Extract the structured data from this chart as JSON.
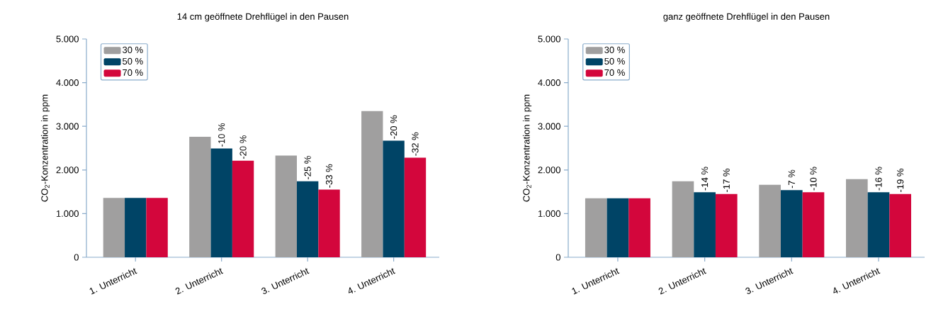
{
  "chart_data": [
    {
      "type": "bar",
      "title": "14 cm geöffnete Drehflügel in den Pausen",
      "ylabel": "CO$_{2}$-Konzentration in ppm",
      "categories": [
        "1. Unterricht",
        "2. Unterricht",
        "3. Unterricht",
        "4. Unterricht"
      ],
      "series": [
        {
          "name": "30 %",
          "color": "#a09f9f",
          "values": [
            1360,
            2760,
            2330,
            3350
          ]
        },
        {
          "name": "50 %",
          "color": "#004466",
          "values": [
            1360,
            2490,
            1740,
            2670
          ]
        },
        {
          "name": "70 %",
          "color": "#d3063c",
          "values": [
            1360,
            2210,
            1550,
            2280
          ]
        }
      ],
      "annotations": [
        "-10 %",
        "-20 %",
        "-25 %",
        "-33 %",
        "-20 %",
        "-32 %"
      ],
      "ylim": [
        0,
        5000
      ],
      "yticks": [
        0,
        {
          "value": 1000,
          "label": "1.000"
        },
        {
          "value": 2000,
          "label": "2.000"
        },
        {
          "value": 3000,
          "label": "3.000"
        },
        {
          "value": 4000,
          "label": "4.000"
        },
        {
          "value": 5000,
          "label": "5.000"
        }
      ],
      "legend": "top left"
    },
    {
      "type": "bar",
      "title": "ganz geöffnete Drehflügel in den Pausen",
      "ylabel": "CO$_{2}$-Konzentration in ppm",
      "categories": [
        "1. Unterricht",
        "2. Unterricht",
        "3. Unterricht",
        "4. Unterricht"
      ],
      "series": [
        {
          "name": "30 %",
          "color": "#a09f9f",
          "values": [
            1350,
            1740,
            1660,
            1790
          ]
        },
        {
          "name": "50 %",
          "color": "#004466",
          "values": [
            1350,
            1490,
            1540,
            1490
          ]
        },
        {
          "name": "70 %",
          "color": "#d3063c",
          "values": [
            1350,
            1450,
            1490,
            1450
          ]
        }
      ],
      "annotations": [
        "-14 %",
        "-17 %",
        "-7 %",
        "-10 %",
        "-16 %",
        "-19 %"
      ],
      "ylim": [
        0,
        5000
      ],
      "yticks": [
        0,
        {
          "value": 1000,
          "label": "1.000"
        },
        {
          "value": 2000,
          "label": "2.000"
        },
        {
          "value": 3000,
          "label": "3.000"
        },
        {
          "value": 4000,
          "label": "4.000"
        },
        {
          "value": 5000,
          "label": "5.000"
        }
      ],
      "legend": "top left"
    }
  ]
}
